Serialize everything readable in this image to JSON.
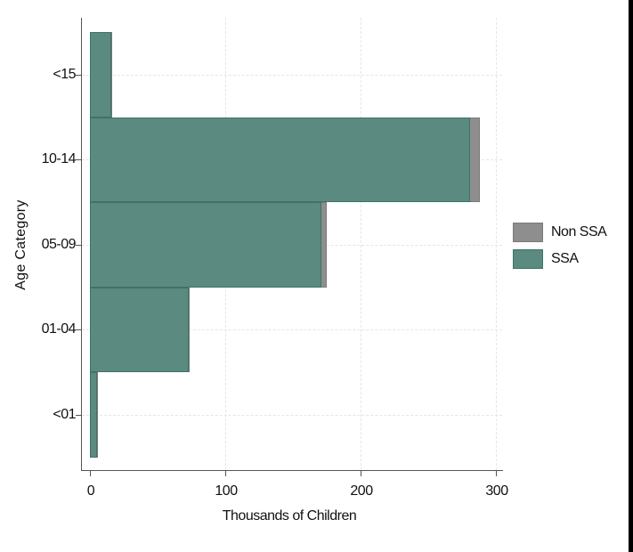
{
  "chart_data": {
    "type": "bar",
    "orientation": "horizontal",
    "stacked": true,
    "title": "",
    "xlabel": "Thousands of Children",
    "ylabel": "Age Category",
    "xlim": [
      0,
      300
    ],
    "x_ticks": [
      "0",
      "100",
      "200",
      "300"
    ],
    "categories": [
      "<15",
      "10-14",
      "05-09",
      "01-04",
      "<01"
    ],
    "series": [
      {
        "name": "SSA",
        "color": "#5a8a80",
        "values": [
          16,
          281,
          171,
          73,
          5
        ]
      },
      {
        "name": "Non SSA",
        "color": "#8e8e8e",
        "values": [
          0.5,
          7,
          4,
          1,
          0.3
        ]
      }
    ],
    "grid": true,
    "legend_position": "right"
  },
  "legend": {
    "items": [
      {
        "label": "Non SSA",
        "color": "#8e8e8e"
      },
      {
        "label": "SSA",
        "color": "#5a8a80"
      }
    ]
  }
}
